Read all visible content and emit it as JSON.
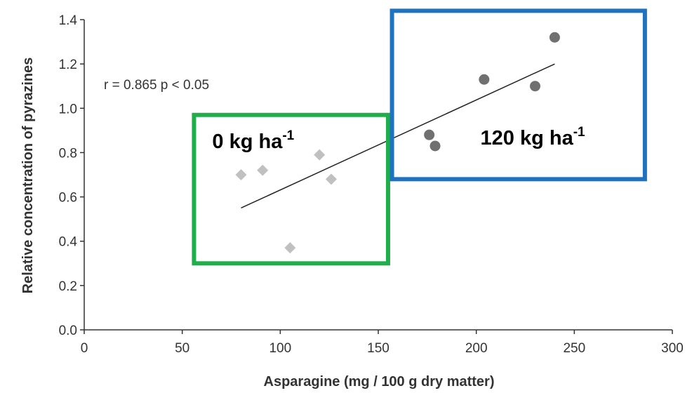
{
  "chart_data": {
    "type": "scatter",
    "xlabel": "Asparagine (mg / 100 g dry matter)",
    "ylabel": "Relative concentration of pyrazines",
    "xlim": [
      0,
      300
    ],
    "ylim": [
      0,
      1.4
    ],
    "xticks": [
      "0",
      "50",
      "100",
      "150",
      "200",
      "250",
      "300"
    ],
    "yticks": [
      "0.0",
      "0.2",
      "0.4",
      "0.6",
      "0.8",
      "1.0",
      "1.2",
      "1.4"
    ],
    "annotation": "r = 0.865 p < 0.05",
    "series": [
      {
        "marker": "diamond",
        "color": "#c0c0c0",
        "points": [
          {
            "x": 80,
            "y": 0.7
          },
          {
            "x": 91,
            "y": 0.72
          },
          {
            "x": 105,
            "y": 0.37
          },
          {
            "x": 120,
            "y": 0.79
          },
          {
            "x": 126,
            "y": 0.68
          }
        ]
      },
      {
        "marker": "circle",
        "color": "#707070",
        "points": [
          {
            "x": 176,
            "y": 0.88
          },
          {
            "x": 179,
            "y": 0.83
          },
          {
            "x": 204,
            "y": 1.13
          },
          {
            "x": 230,
            "y": 1.1
          },
          {
            "x": 240,
            "y": 1.32
          }
        ]
      }
    ],
    "trendline": {
      "x1": 80,
      "y1": 0.55,
      "x2": 240,
      "y2": 1.2
    },
    "boxes": [
      {
        "label": "0 kg ha",
        "sup": "-1",
        "color": "#1fae4b",
        "x_range": [
          56,
          155
        ],
        "y_range": [
          0.3,
          0.97
        ]
      },
      {
        "label": "120 kg ha",
        "sup": "-1",
        "color": "#1f72bd",
        "x_range": [
          157,
          286
        ],
        "y_range": [
          0.68,
          1.44
        ]
      }
    ]
  }
}
